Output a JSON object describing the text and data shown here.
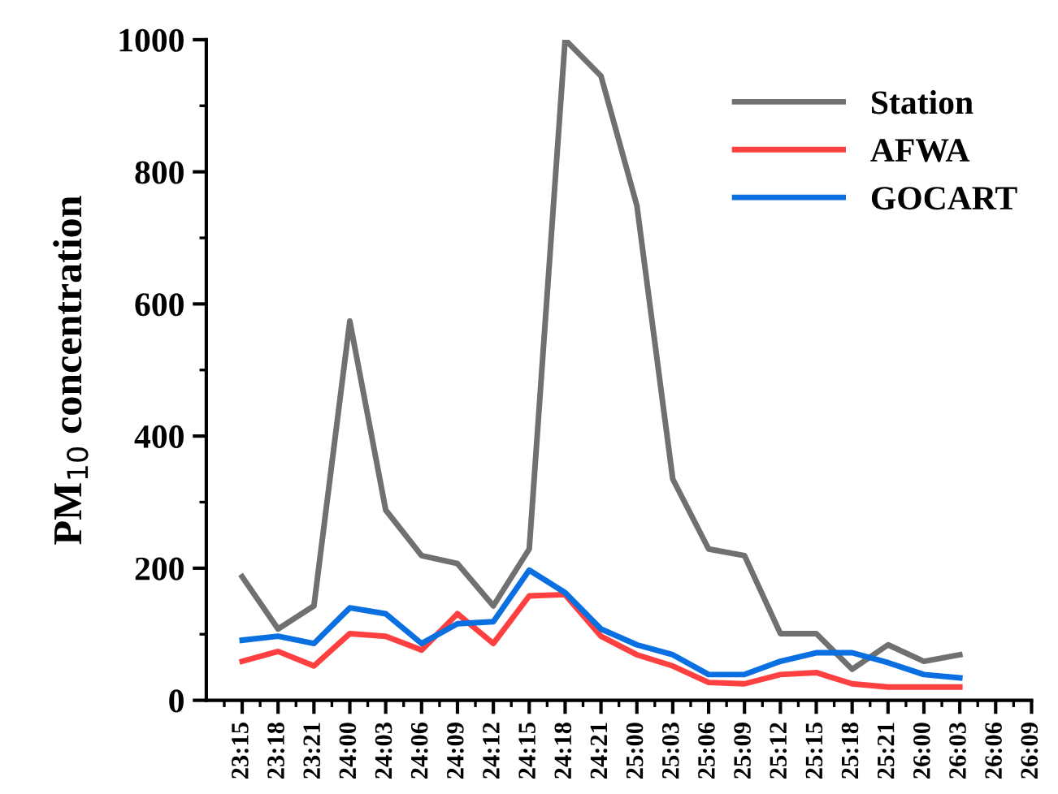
{
  "chart_data": {
    "type": "line",
    "ylabel": "PM$_{10}$ concentration",
    "categories": [
      "23:15",
      "23:18",
      "23:21",
      "24:00",
      "24:03",
      "24:06",
      "24:09",
      "24:12",
      "24:15",
      "24:18",
      "24:21",
      "25:00",
      "25:03",
      "25:06",
      "25:09",
      "25:12",
      "25:15",
      "25:18",
      "25:21",
      "26:00",
      "26:03",
      "26:06",
      "26:09"
    ],
    "series": [
      {
        "name": "Station",
        "color": "#707070",
        "values": [
          187,
          108,
          143,
          574,
          288,
          219,
          207,
          143,
          229,
          1000,
          945,
          749,
          335,
          229,
          219,
          101,
          101,
          47,
          84,
          59,
          69,
          null,
          null
        ]
      },
      {
        "name": "AFWA",
        "color": "#ff4040",
        "values": [
          59,
          74,
          52,
          101,
          97,
          76,
          131,
          86,
          158,
          160,
          97,
          69,
          52,
          27,
          25,
          39,
          42,
          25,
          20,
          20,
          20,
          null,
          null
        ]
      },
      {
        "name": "GOCART",
        "color": "#0a6fe0",
        "values": [
          91,
          97,
          86,
          140,
          131,
          86,
          116,
          119,
          197,
          163,
          108,
          84,
          69,
          39,
          39,
          59,
          72,
          72,
          57,
          39,
          34,
          null,
          null
        ]
      }
    ],
    "ylim": [
      0,
      1000
    ],
    "yticks": [
      0,
      200,
      400,
      600,
      800,
      1000
    ],
    "grid": false,
    "legend": "top right",
    "marker": "none",
    "line_style": "solid"
  }
}
